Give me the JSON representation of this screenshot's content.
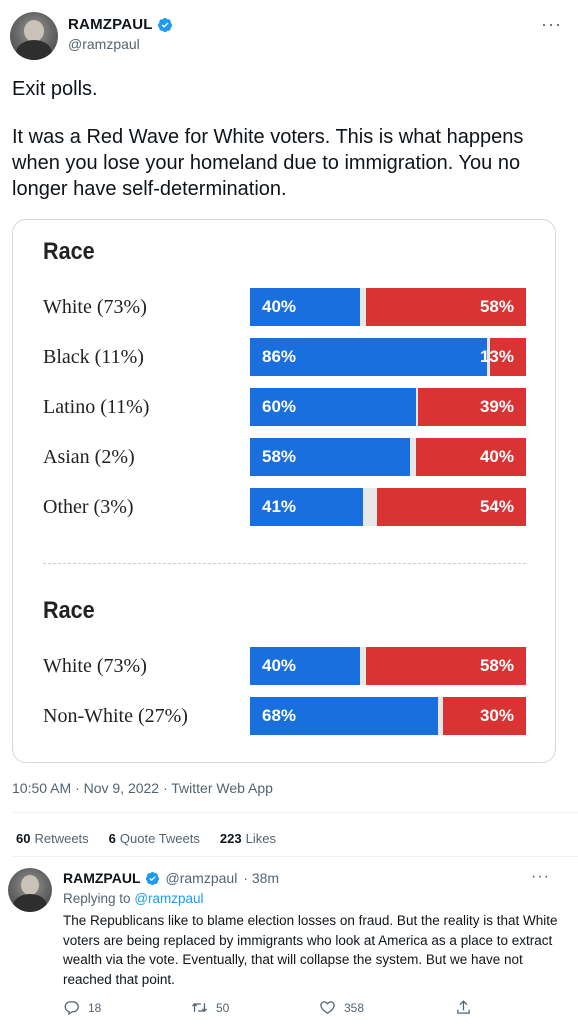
{
  "tweet": {
    "display_name": "RAMZPAUL",
    "handle": "@ramzpaul",
    "more_label": "···",
    "text_line1": "Exit polls.",
    "text_line2": "It was a Red Wave for White voters. This is what happens when you lose your homeland due to immigration. You no longer have self-determination.",
    "timestamp": "10:50 AM · Nov 9, 2022 · Twitter Web App",
    "stats": [
      {
        "count": "60",
        "label": "Retweets"
      },
      {
        "count": "6",
        "label": "Quote Tweets"
      },
      {
        "count": "223",
        "label": "Likes"
      }
    ]
  },
  "media": {
    "sections": [
      {
        "title": "Race",
        "rows": [
          {
            "label": "White (73%)",
            "dem": 40,
            "rep": 58,
            "dem_label": "40%",
            "rep_label": "58%"
          },
          {
            "label": "Black (11%)",
            "dem": 86,
            "rep": 13,
            "dem_label": "86%",
            "rep_label": "13%"
          },
          {
            "label": "Latino (11%)",
            "dem": 60,
            "rep": 39,
            "dem_label": "60%",
            "rep_label": "39%"
          },
          {
            "label": "Asian (2%)",
            "dem": 58,
            "rep": 40,
            "dem_label": "58%",
            "rep_label": "40%"
          },
          {
            "label": "Other (3%)",
            "dem": 41,
            "rep": 54,
            "dem_label": "41%",
            "rep_label": "54%"
          }
        ]
      },
      {
        "title": "Race",
        "rows": [
          {
            "label": "White (73%)",
            "dem": 40,
            "rep": 58,
            "dem_label": "40%",
            "rep_label": "58%"
          },
          {
            "label": "Non-White (27%)",
            "dem": 68,
            "rep": 30,
            "dem_label": "68%",
            "rep_label": "30%"
          }
        ]
      }
    ],
    "colors": {
      "dem": "#1a6fdf",
      "rep": "#d93333",
      "undecided": "#e7e7e7"
    }
  },
  "reply": {
    "display_name": "RAMZPAUL",
    "handle": "@ramzpaul",
    "time": "· 38m",
    "more_label": "···",
    "replying_prefix": "Replying to",
    "replying_handle": "@ramzpaul",
    "text": "The Republicans like to blame election losses on fraud. But the reality is that White voters are being replaced by immigrants who look at America as a place to extract wealth via the vote. Eventually, that will collapse the system. But we have not reached that point.",
    "actions": {
      "reply_count": "18",
      "retweet_count": "50",
      "like_count": "358"
    }
  },
  "icons": {
    "verified": "verified-badge-icon",
    "reply": "reply-icon",
    "retweet": "retweet-icon",
    "like": "like-icon",
    "share": "share-icon"
  },
  "colors": {
    "accent": "#1d9bf0",
    "secondary_text": "#536471"
  }
}
